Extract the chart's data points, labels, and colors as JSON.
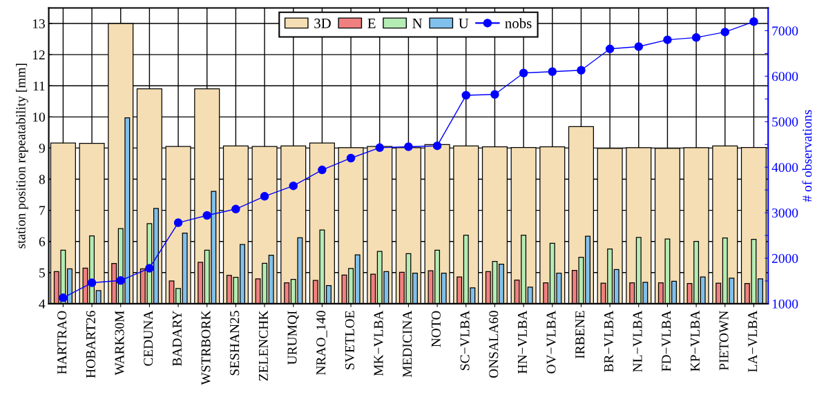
{
  "chart_data": {
    "type": "bar",
    "ylabel": "station position repeatability [mm]",
    "y2label": "# of observations",
    "categories": [
      "HARTRAO",
      "HOBART26",
      "WARK30M",
      "CEDUNA",
      "BADARY",
      "WSTRBORK",
      "SESHAN25",
      "ZELENCHK",
      "URUMQI",
      "NRAO_140",
      "SVETLOE",
      "MK−VLBA",
      "MEDICINA",
      "NOTO",
      "SC−VLBA",
      "ONSALA60",
      "HN−VLBA",
      "OV−VLBA",
      "IRBENE",
      "BR−VLBA",
      "NL−VLBA",
      "FD−VLBA",
      "KP−VLBA",
      "PIETOWN",
      "LA−VLBA"
    ],
    "series": [
      {
        "name": "3D",
        "color": "#f5deb3",
        "values": [
          9.16,
          9.15,
          13.0,
          10.9,
          9.05,
          10.9,
          9.07,
          9.05,
          9.07,
          9.16,
          9.01,
          9.05,
          9.01,
          9.11,
          9.07,
          9.04,
          9.02,
          9.04,
          9.69,
          8.99,
          9.01,
          8.99,
          9.01,
          9.07,
          9.02
        ]
      },
      {
        "name": "E",
        "color": "#f08080",
        "values": [
          5.03,
          5.14,
          5.29,
          5.12,
          4.73,
          5.33,
          4.91,
          4.8,
          4.67,
          4.75,
          4.92,
          4.95,
          5.01,
          5.06,
          4.86,
          5.03,
          4.76,
          4.67,
          5.07,
          4.66,
          4.67,
          4.67,
          4.65,
          4.66,
          4.65
        ]
      },
      {
        "name": "N",
        "color": "#b4ecb4",
        "values": [
          5.72,
          6.18,
          6.41,
          6.57,
          4.49,
          5.72,
          4.85,
          5.3,
          4.78,
          6.37,
          5.13,
          5.68,
          5.61,
          5.72,
          6.2,
          5.36,
          6.2,
          5.94,
          5.49,
          5.76,
          6.13,
          6.08,
          6.0,
          6.11,
          6.07
        ]
      },
      {
        "name": "U",
        "color": "#80c0ec",
        "values": [
          5.12,
          4.42,
          9.97,
          7.06,
          6.27,
          7.61,
          5.9,
          5.56,
          6.12,
          4.58,
          5.57,
          5.03,
          4.98,
          4.98,
          4.51,
          5.27,
          4.53,
          4.98,
          6.17,
          5.1,
          4.69,
          4.72,
          4.86,
          4.82,
          4.8
        ]
      },
      {
        "name": "nobs",
        "type": "line",
        "axis": "y2",
        "color": "#0000ff",
        "marker": "circle",
        "line_style": "solid",
        "values": [
          1130,
          1460,
          1510,
          1780,
          2780,
          2940,
          3080,
          3360,
          3590,
          3940,
          4200,
          4430,
          4450,
          4470,
          5580,
          5600,
          6070,
          6100,
          6130,
          6600,
          6650,
          6800,
          6850,
          6970,
          7200
        ]
      }
    ],
    "ylim": [
      4,
      13.5
    ],
    "yticks": [
      4,
      5,
      6,
      7,
      8,
      9,
      10,
      11,
      12,
      13
    ],
    "y2lim": [
      1000,
      7500
    ],
    "y2ticks": [
      1000,
      {
        "value": 1500,
        "label": null
      },
      2000,
      {
        "value": 2500,
        "label": null
      },
      3000,
      {
        "value": 3500,
        "label": null
      },
      4000,
      {
        "value": 4500,
        "label": null
      },
      5000,
      {
        "value": 5500,
        "label": null
      },
      6000,
      {
        "value": 6500,
        "label": null
      },
      7000,
      {
        "value": 7500,
        "label": null
      }
    ],
    "grid": true,
    "legend": "top"
  }
}
